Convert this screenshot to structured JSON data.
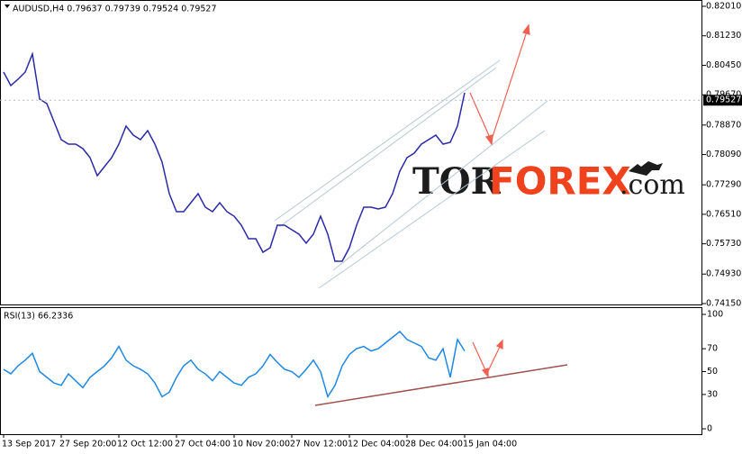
{
  "chart_data": [
    {
      "type": "line",
      "title": "AUDUSD,H4  0.79637 0.79739 0.79524 0.79527",
      "categories": [
        "13 Sep 2017",
        null,
        null,
        null,
        null,
        null,
        null,
        null,
        "27 Sep 20:00",
        null,
        null,
        null,
        null,
        null,
        null,
        null,
        "12 Oct 12:00",
        null,
        null,
        null,
        null,
        null,
        null,
        null,
        "27 Oct 04:00",
        null,
        null,
        null,
        null,
        null,
        null,
        null,
        "10 Nov 20:00",
        null,
        null,
        null,
        null,
        null,
        null,
        null,
        "27 Nov 12:00",
        null,
        null,
        null,
        null,
        null,
        null,
        null,
        "12 Dec 04:00",
        null,
        null,
        null,
        null,
        null,
        null,
        null,
        "28 Dec 04:00",
        null,
        null,
        null,
        null,
        null,
        null,
        null,
        "15 Jan 04:00"
      ],
      "series": [
        {
          "name": "AUDUSD",
          "color": "#2a2aa8",
          "values": [
            0.80271,
            0.79914,
            0.80081,
            0.80271,
            0.80748,
            0.79557,
            0.79437,
            0.78961,
            0.78485,
            0.78366,
            0.78366,
            0.78247,
            0.78008,
            0.77532,
            0.7777,
            0.78008,
            0.78366,
            0.78842,
            0.78604,
            0.78485,
            0.78723,
            0.78366,
            0.77889,
            0.77056,
            0.7658,
            0.7658,
            0.76817,
            0.77056,
            0.76698,
            0.7658,
            0.76817,
            0.7658,
            0.7646,
            0.76222,
            0.75865,
            0.75865,
            0.75507,
            0.75626,
            0.76222,
            0.76222,
            0.76103,
            0.75984,
            0.75746,
            0.75984,
            0.7646,
            0.75984,
            0.75269,
            0.75269,
            0.75626,
            0.76222,
            0.76698,
            0.76698,
            0.76651,
            0.76698,
            0.77056,
            0.77651,
            0.78008,
            0.78127,
            0.78366,
            0.78485,
            0.78604,
            0.78366,
            0.78413,
            0.78842,
            0.79723
          ]
        }
      ],
      "last_price": 0.79527,
      "ylim": [
        0.74126,
        0.82129
      ],
      "yticks": [
        {
          "value": 0.8201,
          "label": "0.82010"
        },
        {
          "value": 0.8123,
          "label": "0.81230"
        },
        {
          "value": 0.8045,
          "label": "0.80450"
        },
        {
          "value": 0.7967,
          "label": "0.79670"
        },
        {
          "value": 0.7887,
          "label": "0.78870"
        },
        {
          "value": 0.7809,
          "label": "0.78090"
        },
        {
          "value": 0.7729,
          "label": "0.77290"
        },
        {
          "value": 0.7651,
          "label": "0.76510"
        },
        {
          "value": 0.7573,
          "label": "0.75730"
        },
        {
          "value": 0.7493,
          "label": "0.74930"
        },
        {
          "value": 0.7415,
          "label": "0.74150"
        }
      ],
      "grid": false,
      "watermark": {
        "prefix": "TOR",
        "brand": "FOREX",
        "suffix": ".com"
      }
    },
    {
      "type": "line",
      "title": "RSI(13) 66.2336",
      "series": [
        {
          "name": "RSI(13)",
          "color": "#1e88e5",
          "values": [
            52,
            48,
            55,
            60,
            66,
            50,
            45,
            40,
            38,
            48,
            42,
            36,
            45,
            50,
            55,
            62,
            72,
            60,
            55,
            52,
            48,
            40,
            28,
            32,
            45,
            55,
            60,
            52,
            48,
            42,
            50,
            45,
            40,
            38,
            45,
            48,
            55,
            65,
            58,
            52,
            50,
            45,
            52,
            60,
            50,
            28,
            38,
            55,
            65,
            70,
            72,
            68,
            70,
            75,
            80,
            85,
            78,
            75,
            72,
            62,
            60,
            70,
            45,
            78,
            68
          ]
        }
      ],
      "ylim": [
        -4.7,
        105.5
      ],
      "yticks": [
        100,
        70,
        50,
        30,
        0
      ],
      "grid": false
    }
  ]
}
